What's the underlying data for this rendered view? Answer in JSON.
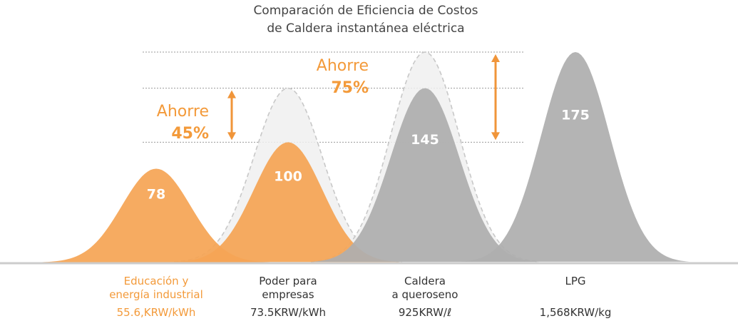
{
  "chart_data": {
    "type": "area",
    "title_lines": [
      "Comparación de Eficiencia de Costos",
      "de Caldera instantánea eléctrica"
    ],
    "categories": [
      {
        "label_lines": [
          "Educación y",
          "energía industrial"
        ],
        "price": "55.6,KRW/kWh",
        "value": 78,
        "highlight": true
      },
      {
        "label_lines": [
          "Poder para",
          "empresas"
        ],
        "price": "73.5KRW/kWh",
        "value": 100,
        "highlight": true
      },
      {
        "label_lines": [
          "Caldera",
          "a queroseno"
        ],
        "price": "925KRW/ℓ",
        "value": 145,
        "highlight": false
      },
      {
        "label_lines": [
          "LPG"
        ],
        "price": "1,568KRW/kg",
        "value": 175,
        "highlight": false
      }
    ],
    "ghost_values": [
      145,
      175
    ],
    "savings": [
      {
        "word": "Ahorre",
        "percent": "45%",
        "from_value": 145,
        "to_value": 100
      },
      {
        "word": "Ahorre",
        "percent": "75%",
        "from_value": 175,
        "to_value": 100
      }
    ],
    "colors": {
      "orange": "#F5A555",
      "orange_text": "#F39A3A",
      "orange_arrow": "#F0953A",
      "gray": "#AEAEAE",
      "ghost_fill": "#F0F0F0",
      "ghost_stroke": "#C8C8C8",
      "baseline": "#CCCCCC",
      "ref_line": "#999999",
      "dark_text": "#333333",
      "title_text": "#444444"
    }
  }
}
